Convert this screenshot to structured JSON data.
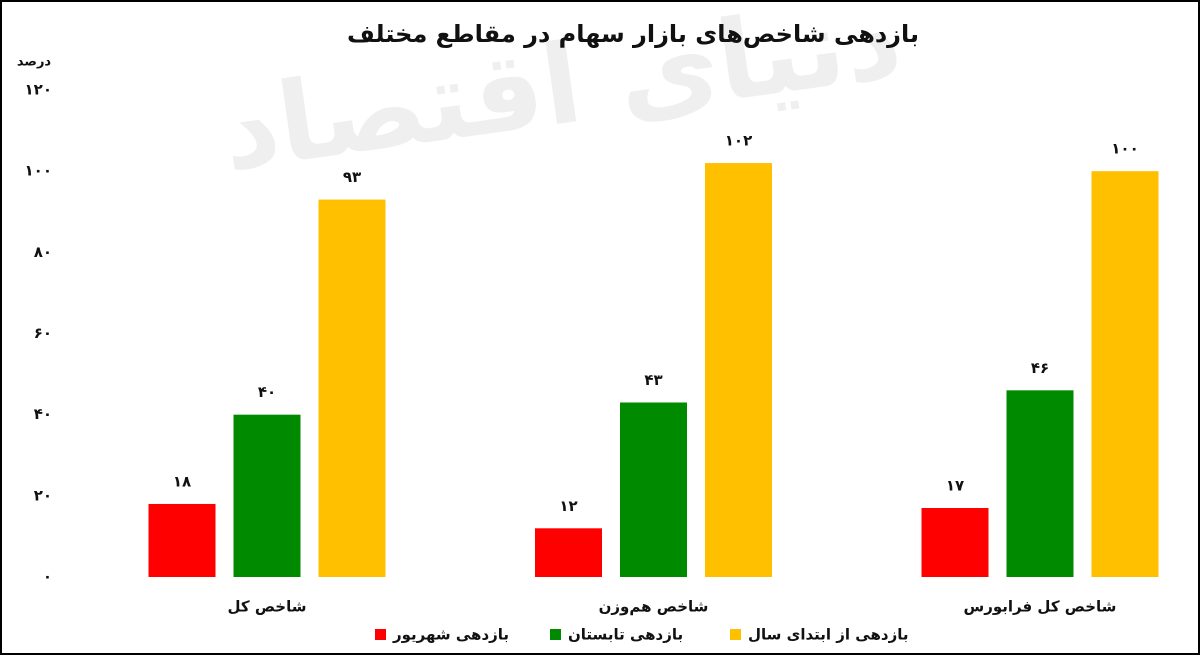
{
  "chart_data": {
    "type": "bar",
    "title": "بازدهی شاخص‌های بازار سهام در مقاطع مختلف",
    "y_label": "درصد",
    "watermark": "دنیای اقتصاد",
    "categories": [
      "شاخص کل",
      "شاخص هم‌وزن",
      "شاخص کل فرابورس"
    ],
    "series": [
      {
        "name": "بازدهی شهریور",
        "color": "#ff0000",
        "values": [
          18,
          12,
          17
        ],
        "value_labels": [
          "۱۸",
          "۱۲",
          "۱۷"
        ]
      },
      {
        "name": "بازدهی تابستان",
        "color": "#008a00",
        "values": [
          40,
          43,
          46
        ],
        "value_labels": [
          "۴۰",
          "۴۳",
          "۴۶"
        ]
      },
      {
        "name": "بازدهی از ابتدای سال",
        "color": "#ffc000",
        "values": [
          93,
          102,
          100
        ],
        "value_labels": [
          "۹۳",
          "۱۰۲",
          "۱۰۰"
        ]
      }
    ],
    "ylim": [
      0,
      120
    ],
    "yticks": [
      {
        "value": 0,
        "label": "۰"
      },
      {
        "value": 20,
        "label": "۲۰"
      },
      {
        "value": 40,
        "label": "۴۰"
      },
      {
        "value": 60,
        "label": "۶۰"
      },
      {
        "value": 80,
        "label": "۸۰"
      },
      {
        "value": 100,
        "label": "۱۰۰"
      },
      {
        "value": 120,
        "label": "۱۲۰"
      }
    ],
    "grid": false
  }
}
